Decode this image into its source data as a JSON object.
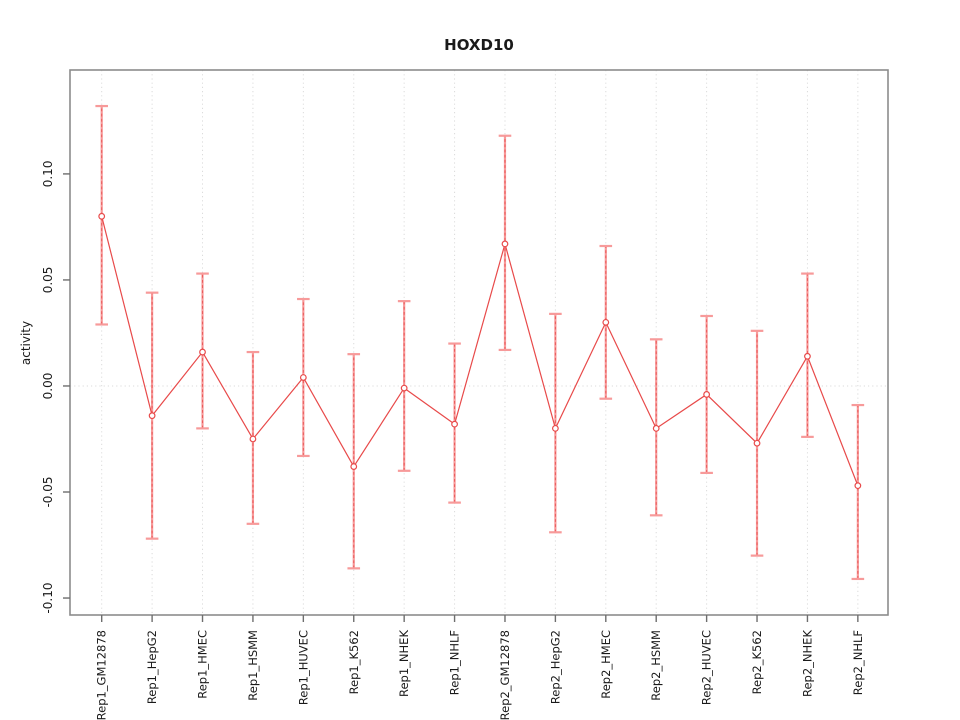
{
  "colors": {
    "series_red": "#E84A4A",
    "errorbar_pink": "#F79A9A",
    "errorbar_dash_red": "#EA5A5A",
    "gridline_gray": "#DBDBDB",
    "frame_gray": "#8C8C8C",
    "tick_gray": "#6E6E6E",
    "text_black": "#1A1A1A",
    "marker_fill": "#FFFFFF"
  },
  "chart_data": {
    "type": "line",
    "title": "HOXD10",
    "xlabel": "",
    "ylabel": "activity",
    "legend": "none",
    "grid": "dotted vertical line at each category; dotted horizontal line at y=0",
    "marker": "open-circle",
    "error_bars": true,
    "ylim": [
      -0.108,
      0.149
    ],
    "ytick_values": [
      0.1,
      0.05,
      0.0,
      -0.05,
      -0.1
    ],
    "ytick_labels": [
      "0.10",
      "0.05",
      "0.00",
      "-0.05",
      "-0.10"
    ],
    "categories": [
      "Rep1_GM12878",
      "Rep1_HepG2",
      "Rep1_HMEC",
      "Rep1_HSMM",
      "Rep1_HUVEC",
      "Rep1_K562",
      "Rep1_NHEK",
      "Rep1_NHLF",
      "Rep2_GM12878",
      "Rep2_HepG2",
      "Rep2_HMEC",
      "Rep2_HSMM",
      "Rep2_HUVEC",
      "Rep2_K562",
      "Rep2_NHEK",
      "Rep2_NHLF"
    ],
    "series": [
      {
        "name": "activity",
        "values": [
          0.08,
          -0.014,
          0.016,
          -0.025,
          0.004,
          -0.038,
          -0.001,
          -0.018,
          0.067,
          -0.02,
          0.03,
          -0.02,
          -0.004,
          -0.027,
          0.014,
          -0.047
        ],
        "error_high": [
          0.132,
          0.044,
          0.053,
          0.016,
          0.041,
          0.015,
          0.04,
          0.02,
          0.118,
          0.034,
          0.066,
          0.022,
          0.033,
          0.026,
          0.053,
          -0.009
        ],
        "error_low": [
          0.029,
          -0.072,
          -0.02,
          -0.065,
          -0.033,
          -0.086,
          -0.04,
          -0.055,
          0.017,
          -0.069,
          -0.006,
          -0.061,
          -0.041,
          -0.08,
          -0.024,
          -0.091
        ]
      }
    ]
  }
}
